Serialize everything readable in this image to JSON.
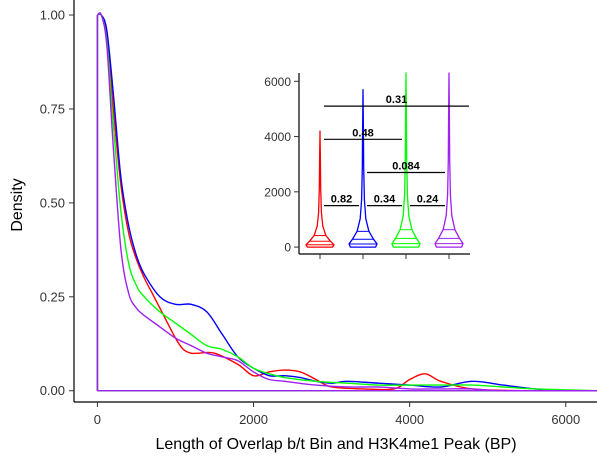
{
  "chart_data": [
    {
      "type": "line",
      "subtype": "density",
      "title": "",
      "xlabel": "Length of Overlap b/t Bin and H3K4me1 Peak (BP)",
      "ylabel": "Density",
      "xlim": [
        -300,
        6400
      ],
      "ylim": [
        -0.03,
        1.04
      ],
      "x_ticks": [
        0,
        2000,
        4000,
        6000
      ],
      "x_tick_labels": [
        "0",
        "2000",
        "4000",
        "6000"
      ],
      "y_ticks": [
        0.0,
        0.25,
        0.5,
        0.75,
        1.0
      ],
      "y_tick_labels": [
        "0.00",
        "0.25",
        "0.50",
        "0.75",
        "1.00"
      ],
      "grid": false,
      "legend": "none",
      "series": [
        {
          "color": "#ff0000",
          "x": [
            0,
            50,
            120,
            200,
            300,
            400,
            500,
            600,
            700,
            800,
            1000,
            1100,
            1200,
            1300,
            1500,
            1800,
            2000,
            2200,
            2400,
            2600,
            2800,
            3000,
            3400,
            3800,
            4000,
            4200,
            4400,
            4800,
            5500,
            6400
          ],
          "y": [
            1.0,
            1.0,
            0.95,
            0.76,
            0.55,
            0.42,
            0.35,
            0.3,
            0.26,
            0.22,
            0.14,
            0.11,
            0.1,
            0.1,
            0.1,
            0.07,
            0.04,
            0.05,
            0.055,
            0.05,
            0.03,
            0.01,
            0.005,
            0.005,
            0.03,
            0.045,
            0.025,
            0.005,
            0.0,
            0.0
          ]
        },
        {
          "color": "#0000ff",
          "x": [
            0,
            50,
            120,
            200,
            300,
            400,
            500,
            600,
            800,
            1000,
            1200,
            1400,
            1600,
            1800,
            2000,
            2200,
            2400,
            2600,
            2800,
            3000,
            3200,
            3600,
            4000,
            4400,
            4800,
            5200,
            5600,
            6000,
            6400
          ],
          "y": [
            1.0,
            1.0,
            0.96,
            0.8,
            0.57,
            0.44,
            0.36,
            0.31,
            0.25,
            0.23,
            0.23,
            0.21,
            0.15,
            0.09,
            0.06,
            0.04,
            0.04,
            0.035,
            0.025,
            0.02,
            0.025,
            0.02,
            0.015,
            0.01,
            0.025,
            0.015,
            0.005,
            0.0,
            0.0
          ]
        },
        {
          "color": "#00ff00",
          "x": [
            0,
            50,
            120,
            200,
            300,
            400,
            500,
            600,
            800,
            1000,
            1200,
            1400,
            1600,
            1800,
            2000,
            2200,
            2400,
            2800,
            3200,
            3600,
            4000,
            4400,
            4800,
            5200,
            5600,
            6400
          ],
          "y": [
            1.0,
            1.0,
            0.93,
            0.72,
            0.48,
            0.34,
            0.28,
            0.25,
            0.21,
            0.18,
            0.15,
            0.12,
            0.11,
            0.09,
            0.06,
            0.045,
            0.035,
            0.025,
            0.02,
            0.015,
            0.015,
            0.015,
            0.015,
            0.01,
            0.005,
            0.0
          ]
        },
        {
          "color": "#a020f0",
          "x": [
            0,
            50,
            120,
            200,
            300,
            400,
            500,
            600,
            800,
            1000,
            1200,
            1400,
            1600,
            1800,
            2000,
            2200,
            2400,
            2800,
            3200,
            3600,
            4000,
            4400,
            4800,
            5200,
            6400
          ],
          "y": [
            1.0,
            1.0,
            0.92,
            0.66,
            0.38,
            0.26,
            0.22,
            0.2,
            0.17,
            0.14,
            0.12,
            0.1,
            0.09,
            0.08,
            0.05,
            0.03,
            0.025,
            0.015,
            0.01,
            0.01,
            0.005,
            0.005,
            0.005,
            0.0,
            0.0
          ]
        }
      ]
    },
    {
      "type": "violin",
      "title": "",
      "xlabel": "",
      "ylabel": "",
      "ylim": [
        -250,
        6300
      ],
      "y_ticks": [
        0,
        2000,
        4000,
        6000
      ],
      "y_tick_labels": [
        "0",
        "2000",
        "4000",
        "6000"
      ],
      "grid": false,
      "legend": "none",
      "groups": [
        {
          "color": "#ff0000",
          "max": 4200
        },
        {
          "color": "#0000ff",
          "max": 5700
        },
        {
          "color": "#00ff00",
          "max": 6300
        },
        {
          "color": "#a020f0",
          "max": 6300
        }
      ],
      "comparisons": [
        {
          "label": "0.31",
          "from": 1,
          "to": 4,
          "y": 5100
        },
        {
          "label": "0.48",
          "from": 1,
          "to": 3,
          "y": 3900
        },
        {
          "label": "0.084",
          "from": 2,
          "to": 4,
          "y": 2700
        },
        {
          "label": "0.82",
          "from": 1,
          "to": 2,
          "y": 1500
        },
        {
          "label": "0.34",
          "from": 2,
          "to": 3,
          "y": 1500
        },
        {
          "label": "0.24",
          "from": 3,
          "to": 4,
          "y": 1500
        }
      ]
    }
  ]
}
